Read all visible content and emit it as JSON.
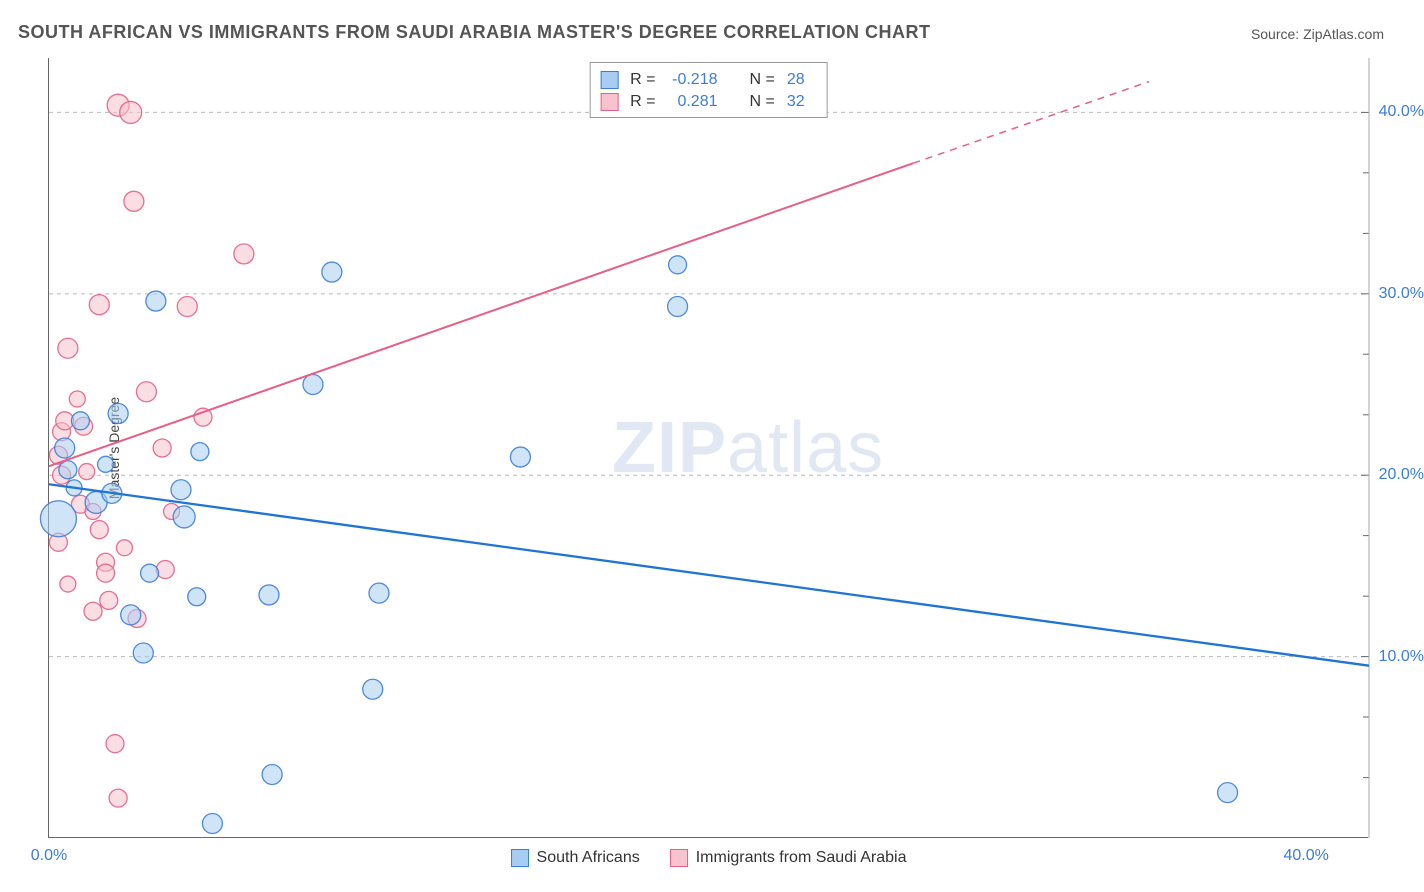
{
  "title": "SOUTH AFRICAN VS IMMIGRANTS FROM SAUDI ARABIA MASTER'S DEGREE CORRELATION CHART",
  "source_label": "Source: ZipAtlas.com",
  "ylabel": "Master's Degree",
  "watermark_bold": "ZIP",
  "watermark_light": "atlas",
  "colors": {
    "series_a_fill": "#a9cdf2",
    "series_a_stroke": "#3b7dd8",
    "series_b_fill": "#f6c3ce",
    "series_b_stroke": "#e75f86",
    "grid": "#bbbbbb",
    "axis": "#666666",
    "tick_label": "#3b7dd8",
    "text": "#555555",
    "watermark": "rgba(120,150,200,0.22)"
  },
  "axes": {
    "x_min": 0.0,
    "x_max": 42.0,
    "y_min": 0.0,
    "y_max": 43.0,
    "x_ticks": [
      {
        "v": 0.0,
        "label": "0.0%"
      },
      {
        "v": 40.0,
        "label": "40.0%"
      }
    ],
    "y_ticks": [
      {
        "v": 10.0,
        "label": "10.0%"
      },
      {
        "v": 20.0,
        "label": "20.0%"
      },
      {
        "v": 30.0,
        "label": "30.0%"
      },
      {
        "v": 40.0,
        "label": "40.0%"
      }
    ],
    "y_tick_marks_only": [
      3.33,
      6.67,
      13.33,
      16.67,
      23.33,
      26.67,
      33.33,
      36.67
    ]
  },
  "correlation_legend": {
    "rows": [
      {
        "swatch_fill": "#a9cdf2",
        "swatch_stroke": "#3b7dd8",
        "r_label": "R =",
        "r_value": "-0.218",
        "n_label": "N =",
        "n_value": "28"
      },
      {
        "swatch_fill": "#f6c3ce",
        "swatch_stroke": "#e75f86",
        "r_label": "R =",
        "r_value": "0.281",
        "n_label": "N =",
        "n_value": "32"
      }
    ]
  },
  "bottom_legend": [
    {
      "swatch_fill": "#a9cdf2",
      "swatch_stroke": "#3b7dd8",
      "label": "South Africans"
    },
    {
      "swatch_fill": "#f6c3ce",
      "swatch_stroke": "#e75f86",
      "label": "Immigrants from Saudi Arabia"
    }
  ],
  "trend_lines": {
    "a": {
      "x1": 0.0,
      "y1": 19.5,
      "x2": 42.0,
      "y2": 9.5,
      "stroke": "#1f74d4",
      "width": 2.3,
      "dash": null
    },
    "b_solid": {
      "x1": 0.0,
      "y1": 20.5,
      "x2": 27.5,
      "y2": 37.2,
      "stroke": "#e75f86",
      "width": 2.0
    },
    "b_dash": {
      "x1": 27.5,
      "y1": 37.2,
      "x2": 35.0,
      "y2": 41.7,
      "stroke": "#e75f86",
      "width": 1.5,
      "dash": "7 6"
    }
  },
  "series_a": {
    "fill": "#a9cdf2",
    "stroke": "#3b7dd8",
    "opacity": 0.55,
    "points": [
      {
        "x": 0.3,
        "y": 17.6,
        "r": 18
      },
      {
        "x": 0.5,
        "y": 21.5,
        "r": 10
      },
      {
        "x": 0.6,
        "y": 20.3,
        "r": 9
      },
      {
        "x": 1.0,
        "y": 23.0,
        "r": 9
      },
      {
        "x": 1.5,
        "y": 18.5,
        "r": 11
      },
      {
        "x": 2.0,
        "y": 19.0,
        "r": 10
      },
      {
        "x": 2.2,
        "y": 23.4,
        "r": 10
      },
      {
        "x": 2.6,
        "y": 12.3,
        "r": 10
      },
      {
        "x": 3.0,
        "y": 10.2,
        "r": 10
      },
      {
        "x": 3.2,
        "y": 14.6,
        "r": 9
      },
      {
        "x": 3.4,
        "y": 29.6,
        "r": 10
      },
      {
        "x": 4.2,
        "y": 19.2,
        "r": 10
      },
      {
        "x": 4.3,
        "y": 17.7,
        "r": 11
      },
      {
        "x": 4.8,
        "y": 21.3,
        "r": 9
      },
      {
        "x": 4.7,
        "y": 13.3,
        "r": 9
      },
      {
        "x": 5.2,
        "y": 0.8,
        "r": 10
      },
      {
        "x": 7.0,
        "y": 13.4,
        "r": 10
      },
      {
        "x": 7.1,
        "y": 3.5,
        "r": 10
      },
      {
        "x": 8.4,
        "y": 25.0,
        "r": 10
      },
      {
        "x": 9.0,
        "y": 31.2,
        "r": 10
      },
      {
        "x": 10.3,
        "y": 8.2,
        "r": 10
      },
      {
        "x": 10.5,
        "y": 13.5,
        "r": 10
      },
      {
        "x": 15.0,
        "y": 21.0,
        "r": 10
      },
      {
        "x": 20.0,
        "y": 29.3,
        "r": 10
      },
      {
        "x": 20.0,
        "y": 31.6,
        "r": 9
      },
      {
        "x": 37.5,
        "y": 2.5,
        "r": 10
      },
      {
        "x": 1.8,
        "y": 20.6,
        "r": 8
      },
      {
        "x": 0.8,
        "y": 19.3,
        "r": 8
      }
    ]
  },
  "series_b": {
    "fill": "#f6c3ce",
    "stroke": "#e75f86",
    "opacity": 0.55,
    "points": [
      {
        "x": 0.3,
        "y": 21.1,
        "r": 9
      },
      {
        "x": 0.4,
        "y": 22.4,
        "r": 9
      },
      {
        "x": 0.4,
        "y": 20.0,
        "r": 9
      },
      {
        "x": 0.5,
        "y": 23.0,
        "r": 9
      },
      {
        "x": 0.6,
        "y": 27.0,
        "r": 10
      },
      {
        "x": 1.0,
        "y": 18.4,
        "r": 9
      },
      {
        "x": 1.1,
        "y": 22.7,
        "r": 9
      },
      {
        "x": 1.4,
        "y": 12.5,
        "r": 9
      },
      {
        "x": 1.6,
        "y": 29.4,
        "r": 10
      },
      {
        "x": 1.6,
        "y": 17.0,
        "r": 9
      },
      {
        "x": 1.8,
        "y": 15.2,
        "r": 9
      },
      {
        "x": 1.8,
        "y": 14.6,
        "r": 9
      },
      {
        "x": 1.9,
        "y": 13.1,
        "r": 9
      },
      {
        "x": 2.1,
        "y": 5.2,
        "r": 9
      },
      {
        "x": 2.2,
        "y": 40.4,
        "r": 11
      },
      {
        "x": 2.6,
        "y": 40.0,
        "r": 11
      },
      {
        "x": 2.7,
        "y": 35.1,
        "r": 10
      },
      {
        "x": 2.8,
        "y": 12.1,
        "r": 9
      },
      {
        "x": 3.1,
        "y": 24.6,
        "r": 10
      },
      {
        "x": 3.7,
        "y": 14.8,
        "r": 9
      },
      {
        "x": 3.6,
        "y": 21.5,
        "r": 9
      },
      {
        "x": 4.4,
        "y": 29.3,
        "r": 10
      },
      {
        "x": 4.9,
        "y": 23.2,
        "r": 9
      },
      {
        "x": 6.2,
        "y": 32.2,
        "r": 10
      },
      {
        "x": 2.2,
        "y": 2.2,
        "r": 9
      },
      {
        "x": 0.3,
        "y": 16.3,
        "r": 9
      },
      {
        "x": 3.9,
        "y": 18.0,
        "r": 8
      },
      {
        "x": 1.2,
        "y": 20.2,
        "r": 8
      },
      {
        "x": 0.6,
        "y": 14.0,
        "r": 8
      },
      {
        "x": 2.4,
        "y": 16.0,
        "r": 8
      },
      {
        "x": 0.9,
        "y": 24.2,
        "r": 8
      },
      {
        "x": 1.4,
        "y": 18.0,
        "r": 8
      }
    ]
  }
}
